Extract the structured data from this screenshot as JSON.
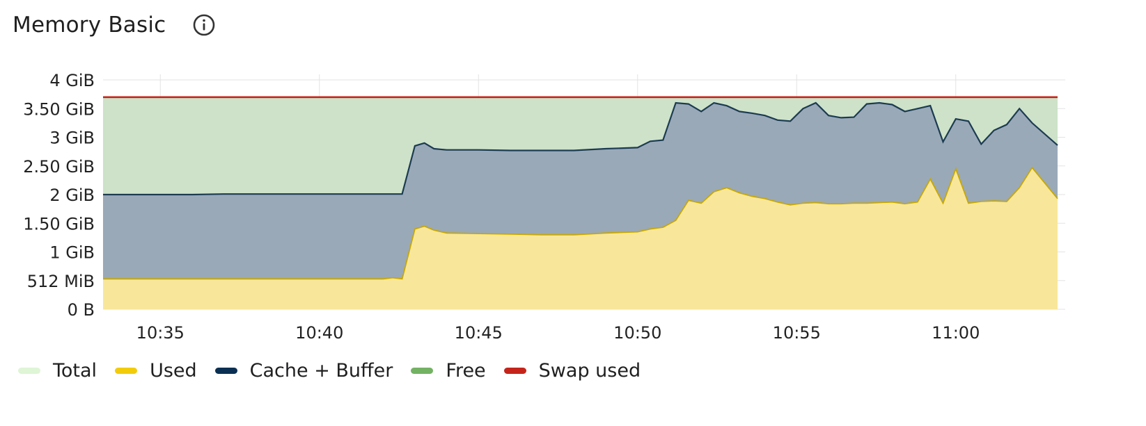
{
  "panel": {
    "title": "Memory Basic",
    "info_icon": "info-circle-icon"
  },
  "chart_data": {
    "type": "area",
    "title": "Memory Basic",
    "xlabel": "",
    "ylabel": "",
    "x_unit": "time (hh:mm)",
    "y_unit": "GiB",
    "xlim": [
      "10:33.2",
      "11:03.2"
    ],
    "ylim": [
      0,
      4
    ],
    "x_ticks": [
      "10:35",
      "10:40",
      "10:45",
      "10:50",
      "10:55",
      "11:00"
    ],
    "y_ticks": [
      "0 B",
      "512 MiB",
      "1 GiB",
      "1.50 GiB",
      "2 GiB",
      "2.50 GiB",
      "3 GiB",
      "3.50 GiB",
      "4 GiB"
    ],
    "grid": true,
    "legend_position": "bottom-left",
    "x": [
      "10:33.2",
      "10:34",
      "10:35",
      "10:36",
      "10:37",
      "10:38",
      "10:39",
      "10:40",
      "10:41",
      "10:42",
      "10:42.3",
      "10:42.6",
      "10:43",
      "10:43.3",
      "10:43.6",
      "10:44",
      "10:45",
      "10:46",
      "10:47",
      "10:48",
      "10:49",
      "10:50",
      "10:50.4",
      "10:50.8",
      "10:51.2",
      "10:51.6",
      "10:52",
      "10:52.4",
      "10:52.8",
      "10:53.2",
      "10:53.6",
      "10:54",
      "10:54.4",
      "10:54.8",
      "10:55.2",
      "10:55.6",
      "10:56",
      "10:56.4",
      "10:56.8",
      "10:57.2",
      "10:57.6",
      "10:58",
      "10:58.4",
      "10:58.8",
      "10:59.2",
      "10:59.6",
      "11:00",
      "11:00.4",
      "11:00.8",
      "11:01.2",
      "11:01.6",
      "11:02",
      "11:02.4",
      "11:03.2"
    ],
    "series": [
      {
        "name": "Total",
        "color": "#dff5d6",
        "values": [
          3.7,
          3.7,
          3.7,
          3.7,
          3.7,
          3.7,
          3.7,
          3.7,
          3.7,
          3.7,
          3.7,
          3.7,
          3.7,
          3.7,
          3.7,
          3.7,
          3.7,
          3.7,
          3.7,
          3.7,
          3.7,
          3.7,
          3.7,
          3.7,
          3.7,
          3.7,
          3.7,
          3.7,
          3.7,
          3.7,
          3.7,
          3.7,
          3.7,
          3.7,
          3.7,
          3.7,
          3.7,
          3.7,
          3.7,
          3.7,
          3.7,
          3.7,
          3.7,
          3.7,
          3.7,
          3.7,
          3.7,
          3.7,
          3.7,
          3.7,
          3.7,
          3.7,
          3.7,
          3.7
        ]
      },
      {
        "name": "Used",
        "color": "#f2cc0c",
        "values": [
          0.53,
          0.53,
          0.53,
          0.53,
          0.53,
          0.53,
          0.53,
          0.53,
          0.53,
          0.53,
          0.55,
          0.53,
          1.4,
          1.45,
          1.38,
          1.33,
          1.32,
          1.31,
          1.3,
          1.3,
          1.33,
          1.35,
          1.4,
          1.43,
          1.55,
          1.9,
          1.85,
          2.05,
          2.12,
          2.03,
          1.97,
          1.93,
          1.87,
          1.82,
          1.85,
          1.86,
          1.84,
          1.84,
          1.85,
          1.85,
          1.86,
          1.87,
          1.84,
          1.87,
          2.27,
          1.85,
          2.45,
          1.85,
          1.88,
          1.89,
          1.88,
          2.12,
          2.47,
          1.93
        ]
      },
      {
        "name": "Cache + Buffer",
        "color": "#0a2f52",
        "values": [
          2.0,
          2.0,
          2.0,
          2.0,
          2.01,
          2.01,
          2.01,
          2.01,
          2.01,
          2.01,
          2.01,
          2.01,
          2.85,
          2.9,
          2.8,
          2.78,
          2.78,
          2.77,
          2.77,
          2.77,
          2.8,
          2.82,
          2.93,
          2.95,
          3.6,
          3.58,
          3.45,
          3.6,
          3.55,
          3.45,
          3.42,
          3.38,
          3.3,
          3.28,
          3.5,
          3.6,
          3.38,
          3.34,
          3.35,
          3.58,
          3.6,
          3.57,
          3.45,
          3.5,
          3.55,
          2.92,
          3.32,
          3.28,
          2.88,
          3.12,
          3.22,
          3.5,
          3.25,
          2.86
        ]
      },
      {
        "name": "Free",
        "color": "#73b263"
      },
      {
        "name": "Swap used",
        "color": "#c4241a",
        "values": [
          3.7,
          3.7,
          3.7,
          3.7,
          3.7,
          3.7,
          3.7,
          3.7,
          3.7,
          3.7,
          3.7,
          3.7,
          3.7,
          3.7,
          3.7,
          3.7,
          3.7,
          3.7,
          3.7,
          3.7,
          3.7,
          3.7,
          3.7,
          3.7,
          3.7,
          3.7,
          3.7,
          3.7,
          3.7,
          3.7,
          3.7,
          3.7,
          3.7,
          3.7,
          3.7,
          3.7,
          3.7,
          3.7,
          3.7,
          3.7,
          3.7,
          3.7,
          3.7,
          3.7,
          3.7,
          3.7,
          3.7,
          3.7,
          3.7,
          3.7,
          3.7,
          3.7,
          3.7,
          3.7
        ]
      }
    ]
  },
  "legend": [
    {
      "label": "Total",
      "color": "#dff5d6"
    },
    {
      "label": "Used",
      "color": "#f2cc0c"
    },
    {
      "label": "Cache + Buffer",
      "color": "#0a2f52"
    },
    {
      "label": "Free",
      "color": "#73b263"
    },
    {
      "label": "Swap used",
      "color": "#c4241a"
    }
  ],
  "colors": {
    "used_fill": "#f8e79a",
    "used_line": "#c9a800",
    "cache_fill": "#9aa9b8",
    "cache_line": "#1c3b52",
    "free_fill": "#cde2c8",
    "swap_line": "#c4241a",
    "grid": "#e3e3e3"
  }
}
